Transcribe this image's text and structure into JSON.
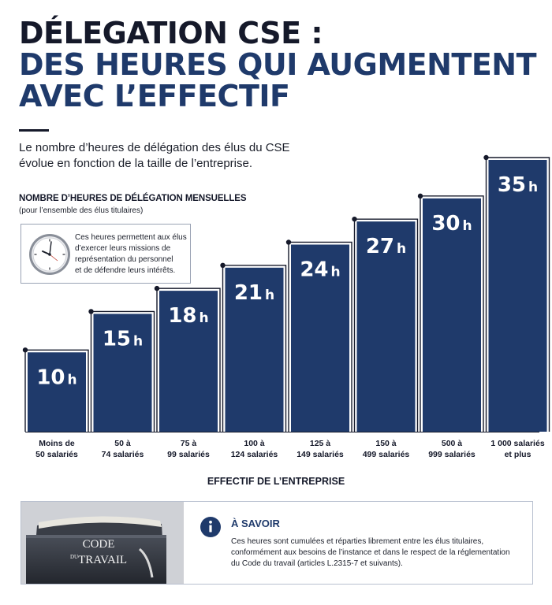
{
  "header": {
    "title_line1": "DÉLEGATION CSE :",
    "title_line2": "DES HEURES QUI AUGMENTENT",
    "title_line3": "AVEC L’EFFECTIF",
    "subtitle_line1": "Le nombre d’heures de délégation des élus du CSE",
    "subtitle_line2": "évolue en fonction de la taille de l’entreprise."
  },
  "chart_data": {
    "type": "bar",
    "title": "NOMBRE D’HEURES DE DÉLÉGATION MENSUELLES",
    "subtitle": "(pour l’ensemble des élus titulaires)",
    "xlabel": "EFFECTIF DE L’ENTREPRISE",
    "ylabel": "",
    "unit": "h",
    "categories": [
      [
        "Moins de",
        "50 salariés"
      ],
      [
        "50 à",
        "74 salariés"
      ],
      [
        "75 à",
        "99 salariés"
      ],
      [
        "100 à",
        "124 salariés"
      ],
      [
        "125 à",
        "149 salariés"
      ],
      [
        "150 à",
        "499 salariés"
      ],
      [
        "500 à",
        "999 salariés"
      ],
      [
        "1 000 salariés",
        "et plus"
      ]
    ],
    "values": [
      10,
      15,
      18,
      21,
      24,
      27,
      30,
      35
    ],
    "data_labels": [
      "10",
      "15",
      "18",
      "21",
      "24",
      "27",
      "30",
      "35"
    ],
    "ylim": [
      0,
      35
    ],
    "grid": false,
    "bar_color": "#1f3a6b",
    "step_line_color": "#15192a"
  },
  "info_box": {
    "icon": "clock-icon",
    "line1": "Ces heures permettent aux élus",
    "line2": "d’exercer leurs missions de",
    "line3": "représentation du personnel",
    "line4": "et de défendre leurs intérêts."
  },
  "savoir": {
    "icon": "info-icon",
    "title": "À SAVOIR",
    "line1": "Ces heures sont cumulées et réparties librement entre les élus titulaires,",
    "line2": "conformément aux besoins de l’instance et dans le respect de la réglementation",
    "line3": "du Code du travail (articles L.2315-7 et suivants).",
    "book_line1": "CODE",
    "book_line2_prefix": "DU",
    "book_line2": "TRAVAIL"
  },
  "colors": {
    "navy": "#1f3a6b",
    "dark": "#15192a"
  }
}
